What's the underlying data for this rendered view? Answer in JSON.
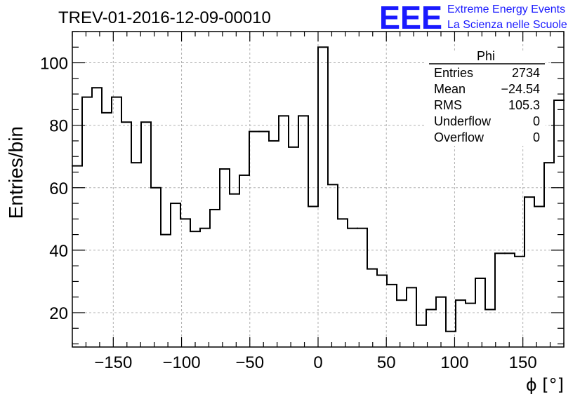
{
  "chart_data": {
    "type": "histogram",
    "title": "TREV-01-2016-12-09-00010",
    "xlabel": "ϕ [°]",
    "ylabel": "Entries/bin",
    "xlim": [
      -180,
      180
    ],
    "ylim": [
      9,
      110
    ],
    "bin_width": 7.2,
    "xticks": [
      -150,
      -100,
      -50,
      0,
      50,
      100,
      150
    ],
    "xtick_labels": [
      "−150",
      "−100",
      "−50",
      "0",
      "50",
      "100",
      "150"
    ],
    "yticks": [
      20,
      40,
      60,
      80,
      100
    ],
    "ytick_labels": [
      "20",
      "40",
      "60",
      "80",
      "100"
    ],
    "grid": true,
    "series": [
      {
        "name": "Phi",
        "color": "#000000",
        "bin_edges_start": -180,
        "values": [
          67,
          89,
          92,
          84,
          89,
          81,
          68,
          81,
          60,
          45,
          55,
          50,
          46,
          47,
          53,
          66,
          58,
          64,
          78,
          78,
          75,
          83,
          73,
          83,
          54,
          105,
          61,
          50,
          47,
          47,
          34,
          32,
          29,
          24,
          28,
          16,
          21,
          25,
          14,
          24,
          23,
          31,
          21,
          39,
          39,
          38,
          57,
          54,
          68,
          88
        ]
      }
    ]
  },
  "stats_box": {
    "title": "Phi",
    "rows": [
      {
        "label": "Entries",
        "value": "2734"
      },
      {
        "label": "Mean",
        "value": "−24.54"
      },
      {
        "label": "RMS",
        "value": "105.3"
      },
      {
        "label": "Underflow",
        "value": "0"
      },
      {
        "label": "Overflow",
        "value": "0"
      }
    ]
  },
  "logo": {
    "mark": "EEE",
    "line1": "Extreme Energy Events",
    "line2": "La Scienza nelle Scuole",
    "color": "#1a1aff"
  }
}
